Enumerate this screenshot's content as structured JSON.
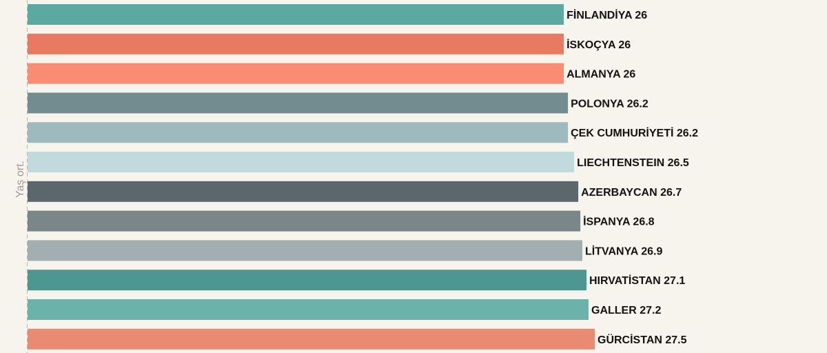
{
  "chart_data": {
    "type": "bar",
    "orientation": "horizontal",
    "ylabel": "Yaş ort.",
    "categories": [
      "FİNLANDİYA",
      "İSKOÇYA",
      "ALMANYA",
      "POLONYA",
      "ÇEK CUMHURİYETİ",
      "LIECHTENSTEIN",
      "AZERBAYCAN",
      "İSPANYA",
      "LİTVANYA",
      "HIRVATİSTAN",
      "GALLER",
      "GÜRCİSTAN"
    ],
    "values": [
      26,
      26,
      26,
      26.2,
      26.2,
      26.5,
      26.7,
      26.8,
      26.9,
      27.1,
      27.2,
      27.5
    ],
    "labels": [
      "FİNLANDİYA 26",
      "İSKOÇYA 26",
      "ALMANYA 26",
      "POLONYA 26.2",
      "ÇEK CUMHURİYETİ 26.2",
      "LIECHTENSTEIN 26.5",
      "AZERBAYCAN 26.7",
      "İSPANYA 26.8",
      "LİTVANYA 26.9",
      "HIRVATİSTAN 27.1",
      "GALLER 27.2",
      "GÜRCİSTAN 27.5"
    ],
    "colors": [
      "#5aaaa2",
      "#e87a62",
      "#fa8c74",
      "#728c8f",
      "#9fbabe",
      "#c1dade",
      "#5c676b",
      "#7a8688",
      "#a2aeb0",
      "#4e9790",
      "#6bb3aa",
      "#e98a73"
    ],
    "grid": false,
    "legend": "none"
  }
}
